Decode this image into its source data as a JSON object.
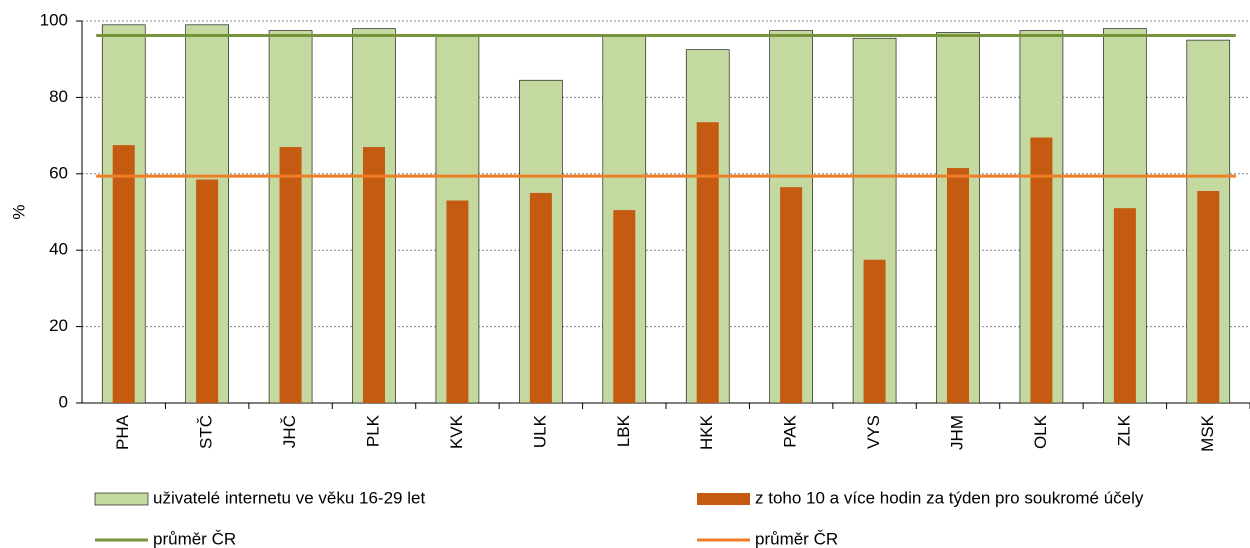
{
  "chart_data": {
    "type": "bar",
    "y_label": "%",
    "categories": [
      "PHA",
      "STČ",
      "JHČ",
      "PLK",
      "KVK",
      "ULK",
      "LBK",
      "HKK",
      "PAK",
      "VYS",
      "JHM",
      "OLK",
      "ZLK",
      "MSK"
    ],
    "series": [
      {
        "name": "uživatelé internetu ve věku 16-29 let",
        "color": "#c4d9a0",
        "values": [
          99,
          99,
          97.5,
          98,
          96.5,
          84.5,
          96.5,
          92.5,
          97.5,
          95.5,
          97,
          97.5,
          98,
          95
        ]
      },
      {
        "name": "z toho 10 a více hodin za týden pro soukromé účely",
        "color": "#c55a11",
        "values": [
          67.5,
          58.5,
          67,
          67,
          53,
          55,
          50.5,
          73.5,
          56.5,
          37.5,
          61.5,
          69.5,
          51,
          55.5
        ]
      }
    ],
    "reference_lines": [
      {
        "name": "průměr ČR",
        "color": "#77933c",
        "value": 96.2
      },
      {
        "name": "průměr ČR",
        "color": "#f07e26",
        "value": 59.4
      }
    ],
    "ylim": [
      0,
      100
    ],
    "yticks": [
      0,
      20,
      40,
      60,
      80,
      100
    ],
    "grid": true
  }
}
